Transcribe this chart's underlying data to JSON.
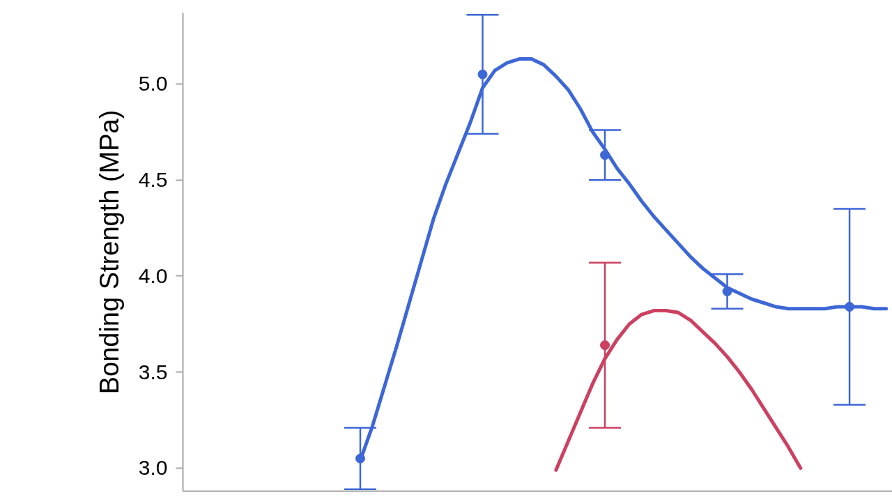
{
  "chart_data": {
    "type": "line",
    "ylabel": "Bonding Strength (MPa)",
    "categories": [
      null,
      null,
      null,
      null,
      null,
      null,
      null,
      null,
      null,
      null,
      null,
      null,
      null,
      null,
      null,
      null,
      null,
      null,
      null,
      null,
      null,
      null,
      null,
      null,
      null,
      null,
      null,
      null,
      null,
      null,
      null,
      null,
      null,
      null,
      null,
      null,
      null,
      null,
      null,
      null,
      null,
      null,
      null,
      null,
      null,
      null,
      null,
      null,
      null,
      null,
      null,
      null,
      null,
      null,
      null,
      null,
      null,
      null
    ],
    "ylim": [
      2.88,
      5.37
    ],
    "yticks": [
      {
        "value": 3,
        "label": "3.0"
      },
      {
        "value": 3.5,
        "label": "3.5"
      },
      {
        "value": 4,
        "label": "4.0"
      },
      {
        "value": 4.5,
        "label": "4.5"
      },
      {
        "value": 5,
        "label": "5.0"
      }
    ],
    "series": [
      {
        "color": "#3d67d6",
        "values": [
          null,
          null,
          null,
          null,
          null,
          null,
          null,
          null,
          null,
          null,
          null,
          null,
          null,
          null,
          3.04,
          3.22,
          3.43,
          3.64,
          3.86,
          4.08,
          4.3,
          4.48,
          4.64,
          4.8,
          4.98,
          5.07,
          5.11,
          5.13,
          5.13,
          5.1,
          5.04,
          4.97,
          4.87,
          4.75,
          4.66,
          4.56,
          4.48,
          4.39,
          4.31,
          4.24,
          4.17,
          4.1,
          4.04,
          3.99,
          3.94,
          3.91,
          3.88,
          3.86,
          3.84,
          3.83,
          3.83,
          3.83,
          3.83,
          3.84,
          3.84,
          3.84,
          3.83,
          3.83
        ]
      },
      {
        "color": "#cc4060",
        "values": [
          null,
          null,
          null,
          null,
          null,
          null,
          null,
          null,
          null,
          null,
          null,
          null,
          null,
          null,
          null,
          null,
          null,
          null,
          null,
          null,
          null,
          null,
          null,
          null,
          null,
          null,
          null,
          null,
          null,
          null,
          2.99,
          3.14,
          3.29,
          3.44,
          3.57,
          3.67,
          3.75,
          3.8,
          3.82,
          3.82,
          3.81,
          3.77,
          3.71,
          3.65,
          3.58,
          3.5,
          3.41,
          3.31,
          3.21,
          3.11,
          3.0,
          null,
          null,
          null,
          null,
          null,
          null,
          null
        ]
      },
      {
        "type": "scatter",
        "marker": "circle",
        "color": "#3d67d6",
        "values": [
          null,
          null,
          null,
          null,
          null,
          null,
          null,
          null,
          null,
          null,
          null,
          null,
          null,
          null,
          3.05,
          null,
          null,
          null,
          null,
          null,
          null,
          null,
          null,
          null,
          5.05,
          null,
          null,
          null,
          null,
          null,
          null,
          null,
          null,
          null,
          4.63,
          null,
          null,
          null,
          null,
          null,
          null,
          null,
          null,
          null,
          3.92,
          null,
          null,
          null,
          null,
          null,
          null,
          null,
          null,
          null,
          3.84,
          null,
          null,
          null
        ],
        "errors": [
          null,
          null,
          null,
          null,
          null,
          null,
          null,
          null,
          null,
          null,
          null,
          null,
          null,
          null,
          0.16,
          null,
          null,
          null,
          null,
          null,
          null,
          null,
          null,
          null,
          0.31,
          null,
          null,
          null,
          null,
          null,
          null,
          null,
          null,
          null,
          0.13,
          null,
          null,
          null,
          null,
          null,
          null,
          null,
          null,
          null,
          0.09,
          null,
          null,
          null,
          null,
          null,
          null,
          null,
          null,
          null,
          0.51,
          null,
          null,
          null
        ]
      },
      {
        "type": "scatter",
        "marker": "circle",
        "color": "#cc4060",
        "values": [
          null,
          null,
          null,
          null,
          null,
          null,
          null,
          null,
          null,
          null,
          null,
          null,
          null,
          null,
          null,
          null,
          null,
          null,
          null,
          null,
          null,
          null,
          null,
          null,
          null,
          null,
          null,
          null,
          null,
          null,
          null,
          null,
          null,
          null,
          3.64,
          null,
          null,
          null,
          null,
          null,
          null,
          null,
          null,
          null,
          null,
          null,
          null,
          null,
          null,
          null,
          null,
          null,
          null,
          null,
          null,
          null,
          null,
          null
        ],
        "errors": [
          null,
          null,
          null,
          null,
          null,
          null,
          null,
          null,
          null,
          null,
          null,
          null,
          null,
          null,
          null,
          null,
          null,
          null,
          null,
          null,
          null,
          null,
          null,
          null,
          null,
          null,
          null,
          null,
          null,
          null,
          null,
          null,
          null,
          null,
          0.43,
          null,
          null,
          null,
          null,
          null,
          null,
          null,
          null,
          null,
          null,
          null,
          null,
          null,
          null,
          null,
          null,
          null,
          null,
          null,
          null,
          null,
          null,
          null
        ]
      }
    ]
  }
}
